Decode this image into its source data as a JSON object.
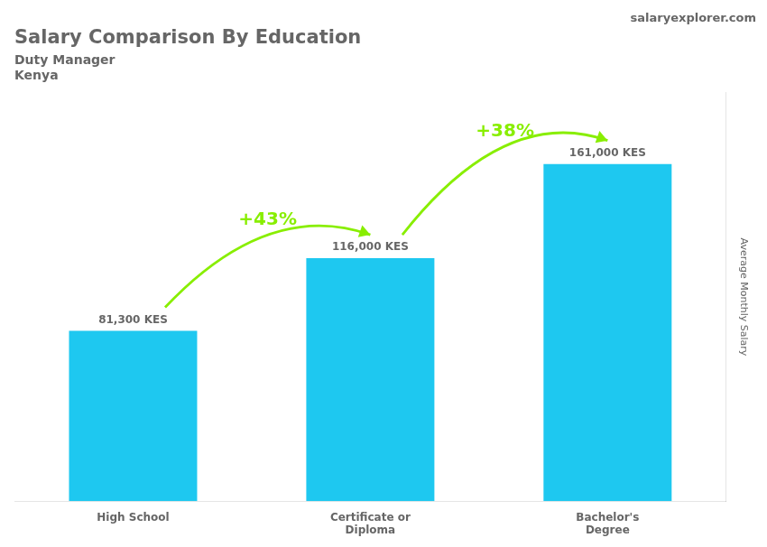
{
  "chart_data": {
    "type": "bar",
    "title": "Salary Comparison By Education",
    "subtitle": [
      "Duty Manager",
      "Kenya"
    ],
    "ylabel": "Average Monthly Salary",
    "categories": [
      "High School",
      "Certificate or\nDiploma",
      "Bachelor's\nDegree"
    ],
    "values": [
      81300,
      116000,
      161000
    ],
    "value_labels": [
      "81,300 KES",
      "116,000 KES",
      "161,000 KES"
    ],
    "data_labels": true,
    "color": "#1ec8f0",
    "ylim": [
      0,
      195000
    ],
    "tick_labels": "x",
    "grid": false,
    "annotations": [
      {
        "text": "+43%",
        "color": "#88ee00"
      },
      {
        "text": "+38%",
        "color": "#88ee00"
      },
      {
        "text": "salaryexplorer.com"
      }
    ]
  }
}
